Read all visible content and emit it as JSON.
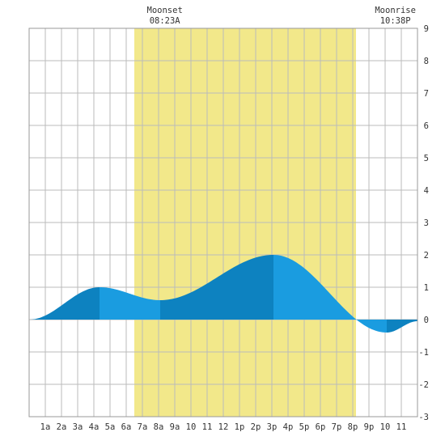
{
  "events": [
    {
      "label": "Moonset",
      "time": "08:23A",
      "hour": 8.383
    },
    {
      "label": "Moonrise",
      "time": "10:38P",
      "hour": 22.633
    }
  ],
  "chart_data": {
    "type": "area",
    "title": "",
    "xlabel": "",
    "ylabel": "",
    "xlim": [
      0,
      24
    ],
    "ylim": [
      -3,
      9
    ],
    "grid": true,
    "x_tick_labels": [
      "1a",
      "2a",
      "3a",
      "4a",
      "5a",
      "6a",
      "7a",
      "8a",
      "9a",
      "10",
      "11",
      "12",
      "1p",
      "2p",
      "3p",
      "4p",
      "5p",
      "6p",
      "7p",
      "8p",
      "9p",
      "10",
      "11"
    ],
    "y_tick_labels": [
      "9",
      "8",
      "7",
      "6",
      "5",
      "4",
      "3",
      "2",
      "1",
      "0",
      "-1",
      "-2",
      "-3"
    ],
    "daylight": {
      "start": 6.5,
      "end": 20.2
    },
    "extrema": [
      {
        "type": "high",
        "hour": 4.35,
        "height": 1.0
      },
      {
        "type": "low",
        "hour": 8.1,
        "height": 0.6
      },
      {
        "type": "high",
        "hour": 15.1,
        "height": 2.0
      },
      {
        "type": "low",
        "hour": 22.1,
        "height": -0.4
      }
    ],
    "start_height": 0.0,
    "end_height": -0.05,
    "colors": {
      "daylight": "#f2e88a",
      "dark_band": "#0d82c0",
      "light_band": "#1a9ce0",
      "grid": "#bbbbbb"
    }
  }
}
